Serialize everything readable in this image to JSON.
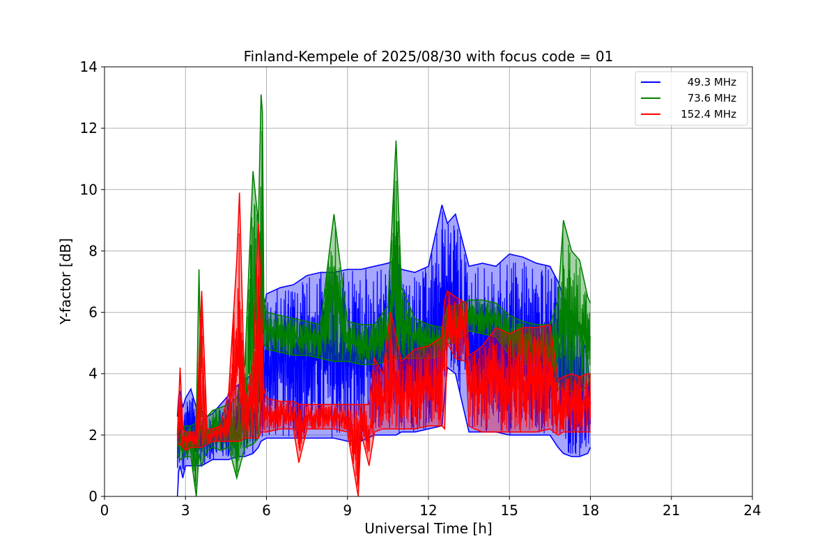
{
  "chart_data": {
    "type": "line",
    "title": "Finland-Kempele of 2025/08/30 with focus code = 01",
    "xlabel": "Universal Time [h]",
    "ylabel": "Y-factor [dB]",
    "xlim": [
      0,
      24
    ],
    "ylim": [
      0,
      14
    ],
    "xticks": [
      0,
      3,
      6,
      9,
      12,
      15,
      18,
      21,
      24
    ],
    "yticks": [
      0,
      2,
      4,
      6,
      8,
      10,
      12,
      14
    ],
    "grid": true,
    "legend_position": "top-right",
    "series": [
      {
        "name": "49.3 MHz",
        "color": "#0000ff",
        "x": [
          2.7,
          2.75,
          2.8,
          2.9,
          3.0,
          3.2,
          3.4,
          3.6,
          3.8,
          4.0,
          4.3,
          4.6,
          4.9,
          5.2,
          5.5,
          5.7,
          5.8,
          6.0,
          6.5,
          7.0,
          7.5,
          8.0,
          8.5,
          9.0,
          9.5,
          10.0,
          10.5,
          10.8,
          11.0,
          11.5,
          12.0,
          12.5,
          12.7,
          13.0,
          13.5,
          14.0,
          14.5,
          15.0,
          15.5,
          16.0,
          16.5,
          16.8,
          17.0,
          17.3,
          17.6,
          17.9,
          18.0
        ],
        "low": [
          0.0,
          0.8,
          1.0,
          0.6,
          1.0,
          1.0,
          1.0,
          1.0,
          1.1,
          1.2,
          1.2,
          1.2,
          1.3,
          1.3,
          1.4,
          1.6,
          1.8,
          1.9,
          1.9,
          1.9,
          1.9,
          1.9,
          1.9,
          1.8,
          1.8,
          2.0,
          2.0,
          2.0,
          2.1,
          2.1,
          2.2,
          2.3,
          4.2,
          4.0,
          2.1,
          2.1,
          2.1,
          2.0,
          2.0,
          2.0,
          2.0,
          1.6,
          1.4,
          1.3,
          1.3,
          1.4,
          1.6
        ],
        "high": [
          2.6,
          3.3,
          3.4,
          2.9,
          3.2,
          3.5,
          2.9,
          2.8,
          2.6,
          2.7,
          3.0,
          3.3,
          3.6,
          3.8,
          4.0,
          4.5,
          5.5,
          6.6,
          6.8,
          6.9,
          7.2,
          7.3,
          7.3,
          7.4,
          7.4,
          7.5,
          7.6,
          7.7,
          7.4,
          7.3,
          7.5,
          9.5,
          8.9,
          9.2,
          7.5,
          7.6,
          7.5,
          7.9,
          7.8,
          7.6,
          7.5,
          7.0,
          6.5,
          6.0,
          5.5,
          4.5,
          3.0
        ]
      },
      {
        "name": "73.6 MHz",
        "color": "#008000",
        "x": [
          2.7,
          2.8,
          3.0,
          3.2,
          3.4,
          3.5,
          3.6,
          3.8,
          4.0,
          4.3,
          4.6,
          4.9,
          5.2,
          5.5,
          5.7,
          5.8,
          5.85,
          5.9,
          6.0,
          6.5,
          7.0,
          7.5,
          8.0,
          8.5,
          9.0,
          9.5,
          10.0,
          10.5,
          10.8,
          11.0,
          11.5,
          12.0,
          12.5,
          12.7,
          13.0,
          13.5,
          14.0,
          14.5,
          15.0,
          15.5,
          16.0,
          16.5,
          16.8,
          17.0,
          17.3,
          17.6,
          17.9,
          18.0
        ],
        "low": [
          1.4,
          1.2,
          1.3,
          1.3,
          0.0,
          1.4,
          1.0,
          1.5,
          1.6,
          1.5,
          1.6,
          0.6,
          1.6,
          1.7,
          1.9,
          3.0,
          4.8,
          5.0,
          4.8,
          4.7,
          4.6,
          4.6,
          4.5,
          4.4,
          4.4,
          4.3,
          4.3,
          4.4,
          4.5,
          4.5,
          4.5,
          4.5,
          4.6,
          5.0,
          5.0,
          5.4,
          5.3,
          5.2,
          4.6,
          4.3,
          4.4,
          4.2,
          3.5,
          3.5,
          3.4,
          3.4,
          3.6,
          4.0
        ],
        "high": [
          2.0,
          2.2,
          2.3,
          2.3,
          2.4,
          7.4,
          2.6,
          2.6,
          2.8,
          2.9,
          3.0,
          3.2,
          4.3,
          10.6,
          8.9,
          13.1,
          12.5,
          6.5,
          6.0,
          5.9,
          5.8,
          5.7,
          5.6,
          9.2,
          5.7,
          5.6,
          5.6,
          6.2,
          11.6,
          6.8,
          5.8,
          5.6,
          5.5,
          6.2,
          6.2,
          6.4,
          6.4,
          6.3,
          5.9,
          5.7,
          5.6,
          5.6,
          6.4,
          9.0,
          8.0,
          7.7,
          6.5,
          6.3
        ]
      },
      {
        "name": "152.4 MHz",
        "color": "#ff0000",
        "x": [
          2.7,
          2.8,
          2.9,
          3.0,
          3.2,
          3.4,
          3.6,
          3.8,
          4.0,
          4.3,
          4.6,
          4.9,
          5.0,
          5.2,
          5.5,
          5.7,
          5.8,
          5.9,
          6.0,
          6.5,
          7.0,
          7.2,
          7.5,
          8.0,
          8.5,
          9.0,
          9.4,
          9.5,
          9.8,
          10.0,
          10.3,
          10.6,
          11.0,
          11.5,
          12.0,
          12.5,
          12.6,
          12.7,
          13.0,
          13.4,
          13.5,
          13.7,
          14.0,
          14.5,
          15.0,
          15.5,
          16.0,
          16.5,
          16.8,
          17.0,
          17.3,
          17.6,
          17.9,
          18.0
        ],
        "low": [
          1.7,
          1.7,
          1.6,
          1.5,
          1.6,
          1.6,
          1.6,
          1.7,
          1.8,
          1.8,
          1.8,
          1.8,
          1.8,
          1.9,
          1.9,
          1.9,
          2.1,
          2.1,
          2.1,
          2.2,
          2.2,
          1.1,
          2.2,
          2.2,
          2.2,
          2.1,
          0.0,
          2.1,
          1.0,
          2.1,
          2.2,
          2.2,
          2.2,
          2.2,
          2.3,
          2.3,
          2.2,
          5.0,
          4.5,
          4.4,
          2.3,
          2.2,
          2.1,
          2.1,
          2.1,
          2.1,
          2.1,
          2.2,
          2.0,
          2.1,
          2.1,
          2.1,
          2.1,
          2.1
        ],
        "high": [
          2.0,
          4.2,
          2.2,
          2.1,
          2.1,
          2.1,
          6.7,
          2.2,
          2.2,
          2.3,
          3.4,
          7.7,
          9.9,
          3.0,
          4.3,
          8.9,
          7.0,
          3.5,
          3.2,
          3.1,
          3.1,
          3.0,
          3.0,
          3.0,
          3.0,
          3.0,
          3.0,
          3.0,
          3.0,
          4.5,
          4.0,
          6.0,
          4.4,
          4.8,
          4.9,
          5.2,
          6.4,
          6.7,
          6.5,
          6.3,
          4.6,
          4.7,
          4.9,
          5.5,
          5.3,
          5.5,
          5.5,
          5.6,
          3.8,
          3.9,
          4.0,
          3.9,
          4.0,
          4.0
        ]
      }
    ]
  }
}
